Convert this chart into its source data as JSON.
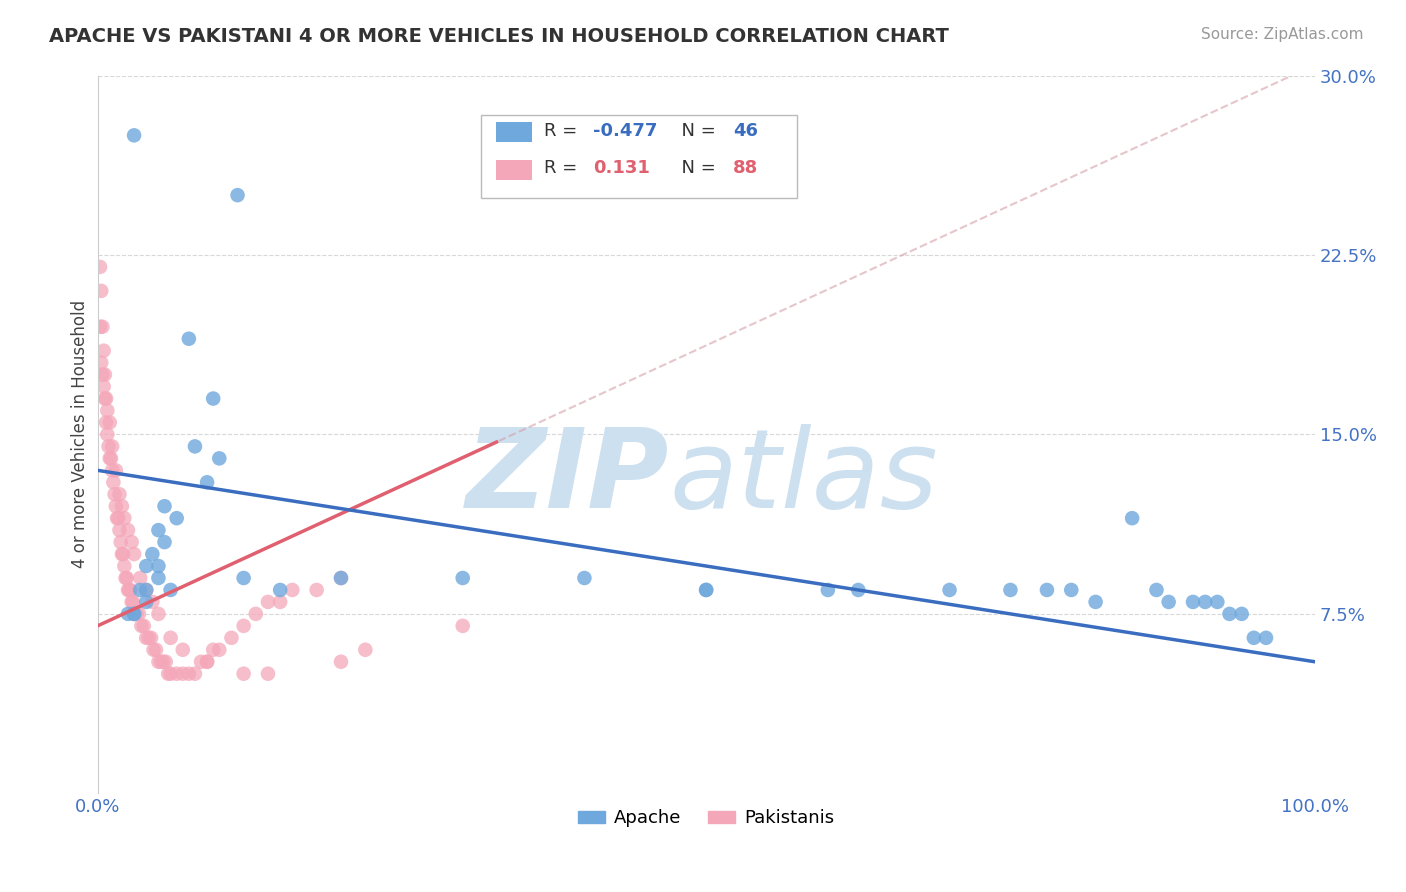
{
  "title": "APACHE VS PAKISTANI 4 OR MORE VEHICLES IN HOUSEHOLD CORRELATION CHART",
  "source": "Source: ZipAtlas.com",
  "ylabel": "4 or more Vehicles in Household",
  "xlim": [
    0.0,
    1.0
  ],
  "ylim": [
    0.0,
    0.3
  ],
  "yticks": [
    0.0,
    0.075,
    0.15,
    0.225,
    0.3
  ],
  "ytick_labels": [
    "",
    "7.5%",
    "15.0%",
    "22.5%",
    "30.0%"
  ],
  "xticks": [
    0.0,
    0.25,
    0.5,
    0.75,
    1.0
  ],
  "xtick_labels": [
    "0.0%",
    "",
    "",
    "",
    "100.0%"
  ],
  "apache_R": -0.477,
  "apache_N": 46,
  "pakistani_R": 0.131,
  "pakistani_N": 88,
  "apache_color": "#6fa8dc",
  "pakistani_color": "#f4a7b9",
  "apache_line_color": "#3a6dbf",
  "pakistani_line_color": "#e06070",
  "dashed_line_color": "#d4a0a8",
  "apache_x": [
    0.03,
    0.115,
    0.075,
    0.095,
    0.08,
    0.1,
    0.09,
    0.055,
    0.065,
    0.05,
    0.055,
    0.045,
    0.04,
    0.05,
    0.06,
    0.035,
    0.04,
    0.03,
    0.025,
    0.03,
    0.04,
    0.05,
    0.12,
    0.15,
    0.2,
    0.3,
    0.4,
    0.5,
    0.6,
    0.625,
    0.7,
    0.75,
    0.78,
    0.8,
    0.82,
    0.85,
    0.87,
    0.88,
    0.9,
    0.91,
    0.92,
    0.93,
    0.94,
    0.95,
    0.96,
    0.5
  ],
  "apache_y": [
    0.275,
    0.25,
    0.19,
    0.165,
    0.145,
    0.14,
    0.13,
    0.12,
    0.115,
    0.11,
    0.105,
    0.1,
    0.095,
    0.09,
    0.085,
    0.085,
    0.08,
    0.075,
    0.075,
    0.075,
    0.085,
    0.095,
    0.09,
    0.085,
    0.09,
    0.09,
    0.09,
    0.085,
    0.085,
    0.085,
    0.085,
    0.085,
    0.085,
    0.085,
    0.08,
    0.115,
    0.085,
    0.08,
    0.08,
    0.08,
    0.08,
    0.075,
    0.075,
    0.065,
    0.065,
    0.085
  ],
  "pakistani_x": [
    0.002,
    0.003,
    0.004,
    0.005,
    0.006,
    0.007,
    0.008,
    0.009,
    0.01,
    0.011,
    0.012,
    0.013,
    0.014,
    0.015,
    0.016,
    0.017,
    0.018,
    0.019,
    0.02,
    0.021,
    0.022,
    0.023,
    0.024,
    0.025,
    0.026,
    0.027,
    0.028,
    0.029,
    0.03,
    0.032,
    0.034,
    0.036,
    0.038,
    0.04,
    0.042,
    0.044,
    0.046,
    0.048,
    0.05,
    0.052,
    0.054,
    0.056,
    0.058,
    0.06,
    0.065,
    0.07,
    0.075,
    0.08,
    0.085,
    0.09,
    0.095,
    0.1,
    0.11,
    0.12,
    0.13,
    0.14,
    0.15,
    0.16,
    0.18,
    0.2,
    0.002,
    0.003,
    0.004,
    0.005,
    0.006,
    0.007,
    0.008,
    0.01,
    0.012,
    0.015,
    0.018,
    0.02,
    0.022,
    0.025,
    0.028,
    0.03,
    0.035,
    0.04,
    0.045,
    0.05,
    0.06,
    0.07,
    0.09,
    0.12,
    0.14,
    0.2,
    0.22,
    0.3
  ],
  "pakistani_y": [
    0.195,
    0.18,
    0.175,
    0.17,
    0.165,
    0.155,
    0.15,
    0.145,
    0.14,
    0.14,
    0.135,
    0.13,
    0.125,
    0.12,
    0.115,
    0.115,
    0.11,
    0.105,
    0.1,
    0.1,
    0.095,
    0.09,
    0.09,
    0.085,
    0.085,
    0.085,
    0.08,
    0.08,
    0.075,
    0.075,
    0.075,
    0.07,
    0.07,
    0.065,
    0.065,
    0.065,
    0.06,
    0.06,
    0.055,
    0.055,
    0.055,
    0.055,
    0.05,
    0.05,
    0.05,
    0.05,
    0.05,
    0.05,
    0.055,
    0.055,
    0.06,
    0.06,
    0.065,
    0.07,
    0.075,
    0.08,
    0.08,
    0.085,
    0.085,
    0.09,
    0.22,
    0.21,
    0.195,
    0.185,
    0.175,
    0.165,
    0.16,
    0.155,
    0.145,
    0.135,
    0.125,
    0.12,
    0.115,
    0.11,
    0.105,
    0.1,
    0.09,
    0.085,
    0.08,
    0.075,
    0.065,
    0.06,
    0.055,
    0.05,
    0.05,
    0.055,
    0.06,
    0.07
  ],
  "watermark_zip": "ZIP",
  "watermark_atlas": "atlas",
  "watermark_color": "#cde0f0",
  "background_color": "#ffffff",
  "grid_color": "#d8d8d8"
}
